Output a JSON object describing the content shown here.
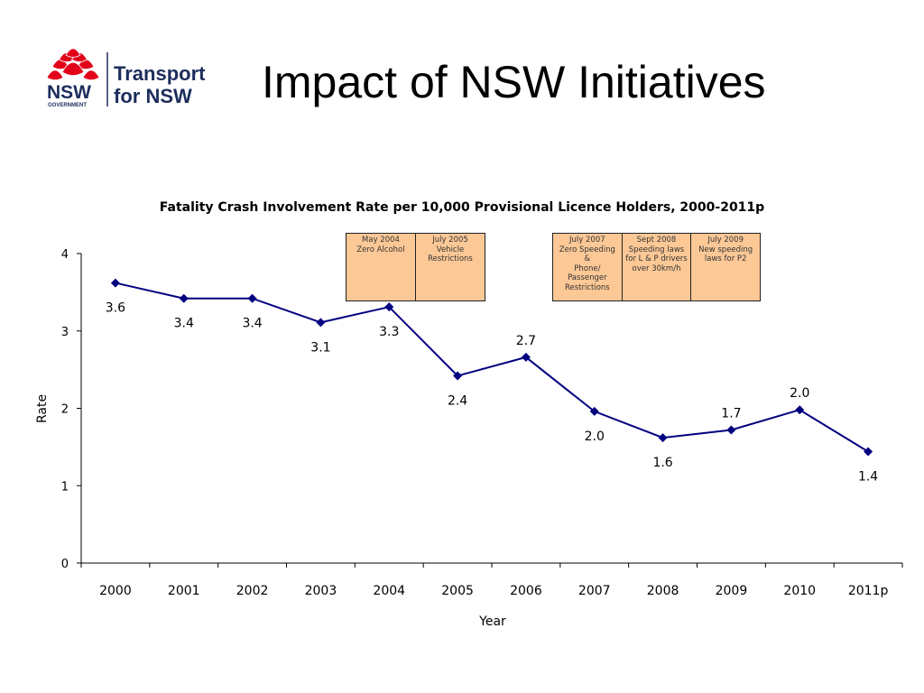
{
  "slide": {
    "title": "Impact of NSW Initiatives"
  },
  "logo": {
    "nsw_text": "NSW",
    "government_text": "GOVERNMENT",
    "org_line1": "Transport",
    "org_line2": "for NSW",
    "flower_color": "#e2001a",
    "navy_color": "#1d2d5c"
  },
  "annotations": {
    "group1": [
      {
        "lines": [
          "May 2004",
          "Zero Alcohol"
        ]
      },
      {
        "lines": [
          "July 2005",
          "Vehicle",
          "Restrictions"
        ]
      }
    ],
    "group2": [
      {
        "lines": [
          "July 2007",
          "Zero Speeding",
          "&",
          "Phone/",
          "Passenger",
          "Restrictions"
        ]
      },
      {
        "lines": [
          "Sept 2008",
          "Speeding laws",
          "for L & P drivers",
          "over 30km/h"
        ]
      },
      {
        "lines": [
          "July 2009",
          "New speeding",
          "laws for P2"
        ]
      }
    ],
    "fill_color": "#fbc896"
  },
  "chart_data": {
    "type": "line",
    "title": "Fatality Crash Involvement Rate per 10,000 Provisional Licence Holders, 2000-2011p",
    "xlabel": "Year",
    "ylabel": "Rate",
    "categories": [
      "2000",
      "2001",
      "2002",
      "2003",
      "2004",
      "2005",
      "2006",
      "2007",
      "2008",
      "2009",
      "2010",
      "2011p"
    ],
    "values": [
      3.62,
      3.42,
      3.42,
      3.11,
      3.31,
      2.42,
      2.66,
      1.96,
      1.62,
      1.72,
      1.98,
      1.44
    ],
    "data_labels": [
      "3.6",
      "3.4",
      "3.4",
      "3.1",
      "3.3",
      "2.4",
      "2.7",
      "2.0",
      "1.6",
      "1.7",
      "2.0",
      "1.4"
    ],
    "y_ticks": [
      "0",
      "1",
      "2",
      "3",
      "4"
    ],
    "ylim": [
      0,
      4
    ],
    "grid": false,
    "legend": "none",
    "line_color": "#000080",
    "marker": "diamond"
  }
}
